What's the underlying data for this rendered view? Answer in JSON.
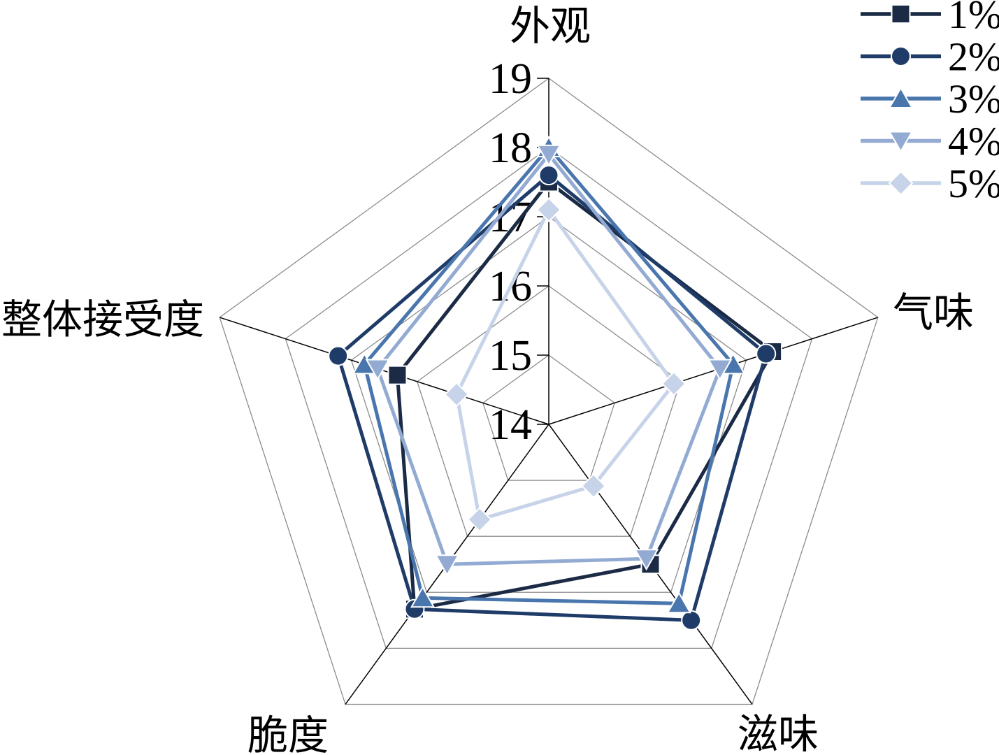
{
  "chart_data": {
    "type": "radar",
    "categories": [
      "外观",
      "气味",
      "滋味",
      "脆度",
      "整体接受度"
    ],
    "series": [
      {
        "name": "1%",
        "marker": "square",
        "color": "#1B2A45",
        "values": [
          17.5,
          17.4,
          16.5,
          17.3,
          16.3
        ]
      },
      {
        "name": "2%",
        "marker": "circle",
        "color": "#1F3C68",
        "values": [
          17.6,
          17.3,
          17.5,
          17.3,
          17.2
        ]
      },
      {
        "name": "3%",
        "marker": "triangle-up",
        "color": "#4A76AE",
        "values": [
          18.0,
          16.8,
          17.2,
          17.1,
          16.8
        ]
      },
      {
        "name": "4%",
        "marker": "triangle-down",
        "color": "#93ABD3",
        "values": [
          17.9,
          16.6,
          16.4,
          16.5,
          16.6
        ]
      },
      {
        "name": "5%",
        "marker": "diamond",
        "color": "#C6D3E8",
        "values": [
          17.1,
          15.9,
          15.1,
          15.7,
          15.4
        ]
      }
    ],
    "axis": {
      "min": 14,
      "max": 19,
      "step": 1,
      "tick_labels": [
        "14",
        "15",
        "16",
        "17",
        "18",
        "19"
      ]
    },
    "grid": {
      "rings": [
        15,
        16,
        17,
        18,
        19
      ],
      "ring_color": "#8C8C8C",
      "spoke_color": "#000000"
    },
    "legend": {
      "position": "top-right",
      "labels": [
        "1%",
        "2%",
        "3%",
        "4%",
        "5%"
      ]
    }
  }
}
